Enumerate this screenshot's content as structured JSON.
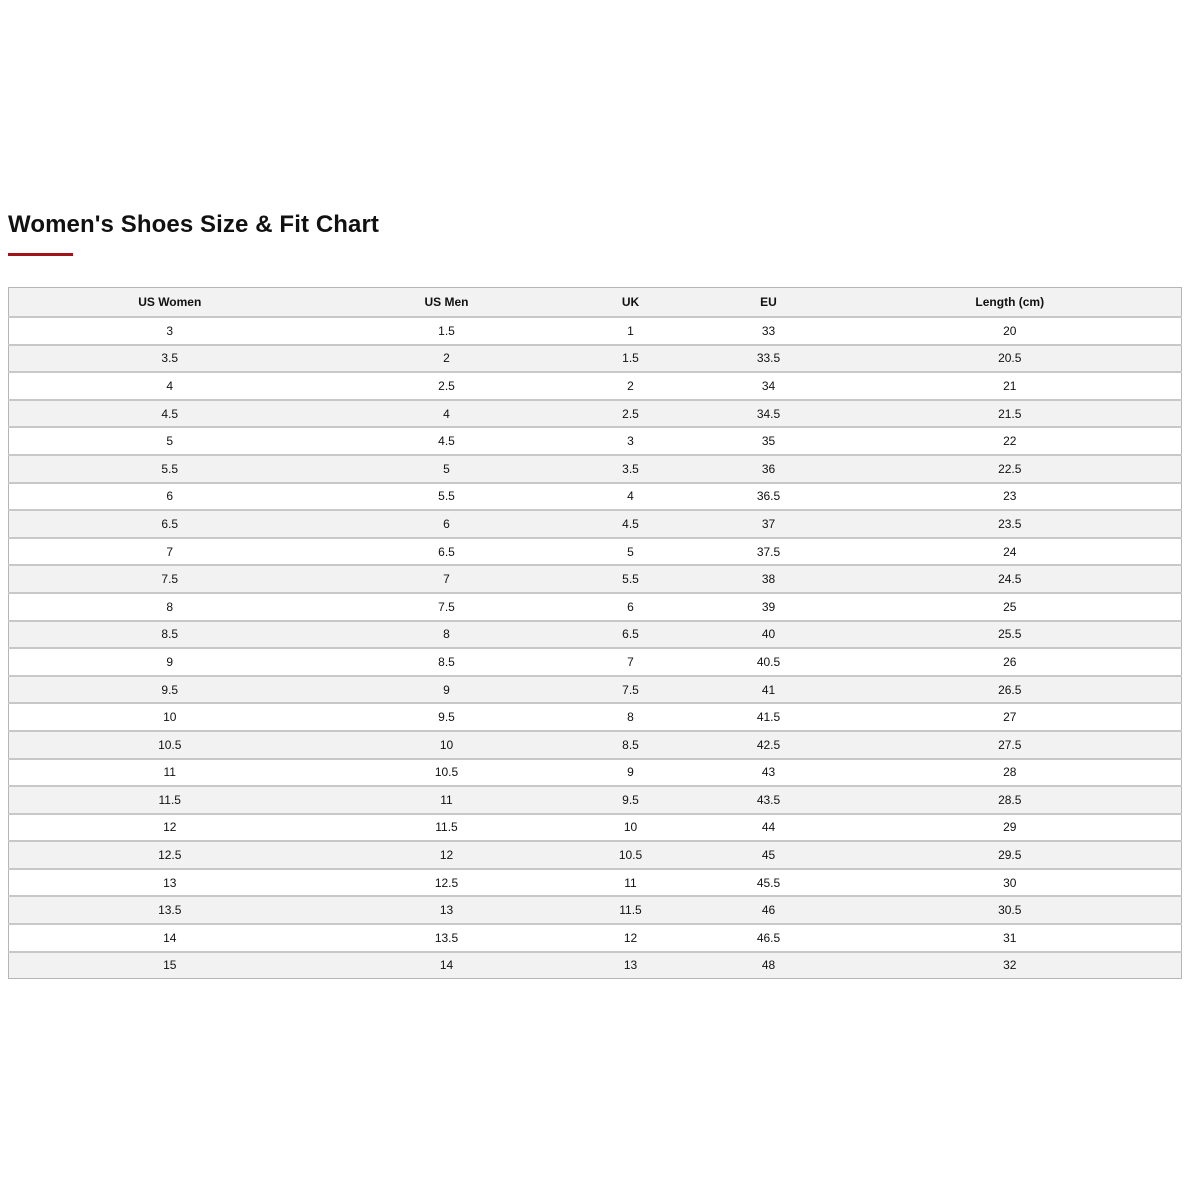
{
  "title": "Women's Shoes Size & Fit Chart",
  "colors": {
    "accent": "#a0131b",
    "stripe": "#f2f2f2",
    "border": "#c8c8c8"
  },
  "table": {
    "headers": [
      "US Women",
      "US Men",
      "UK",
      "EU",
      "Length (cm)"
    ],
    "rows": [
      [
        "3",
        "1.5",
        "1",
        "33",
        "20"
      ],
      [
        "3.5",
        "2",
        "1.5",
        "33.5",
        "20.5"
      ],
      [
        "4",
        "2.5",
        "2",
        "34",
        "21"
      ],
      [
        "4.5",
        "4",
        "2.5",
        "34.5",
        "21.5"
      ],
      [
        "5",
        "4.5",
        "3",
        "35",
        "22"
      ],
      [
        "5.5",
        "5",
        "3.5",
        "36",
        "22.5"
      ],
      [
        "6",
        "5.5",
        "4",
        "36.5",
        "23"
      ],
      [
        "6.5",
        "6",
        "4.5",
        "37",
        "23.5"
      ],
      [
        "7",
        "6.5",
        "5",
        "37.5",
        "24"
      ],
      [
        "7.5",
        "7",
        "5.5",
        "38",
        "24.5"
      ],
      [
        "8",
        "7.5",
        "6",
        "39",
        "25"
      ],
      [
        "8.5",
        "8",
        "6.5",
        "40",
        "25.5"
      ],
      [
        "9",
        "8.5",
        "7",
        "40.5",
        "26"
      ],
      [
        "9.5",
        "9",
        "7.5",
        "41",
        "26.5"
      ],
      [
        "10",
        "9.5",
        "8",
        "41.5",
        "27"
      ],
      [
        "10.5",
        "10",
        "8.5",
        "42.5",
        "27.5"
      ],
      [
        "11",
        "10.5",
        "9",
        "43",
        "28"
      ],
      [
        "11.5",
        "11",
        "9.5",
        "43.5",
        "28.5"
      ],
      [
        "12",
        "11.5",
        "10",
        "44",
        "29"
      ],
      [
        "12.5",
        "12",
        "10.5",
        "45",
        "29.5"
      ],
      [
        "13",
        "12.5",
        "11",
        "45.5",
        "30"
      ],
      [
        "13.5",
        "13",
        "11.5",
        "46",
        "30.5"
      ],
      [
        "14",
        "13.5",
        "12",
        "46.5",
        "31"
      ],
      [
        "15",
        "14",
        "13",
        "48",
        "32"
      ]
    ]
  }
}
